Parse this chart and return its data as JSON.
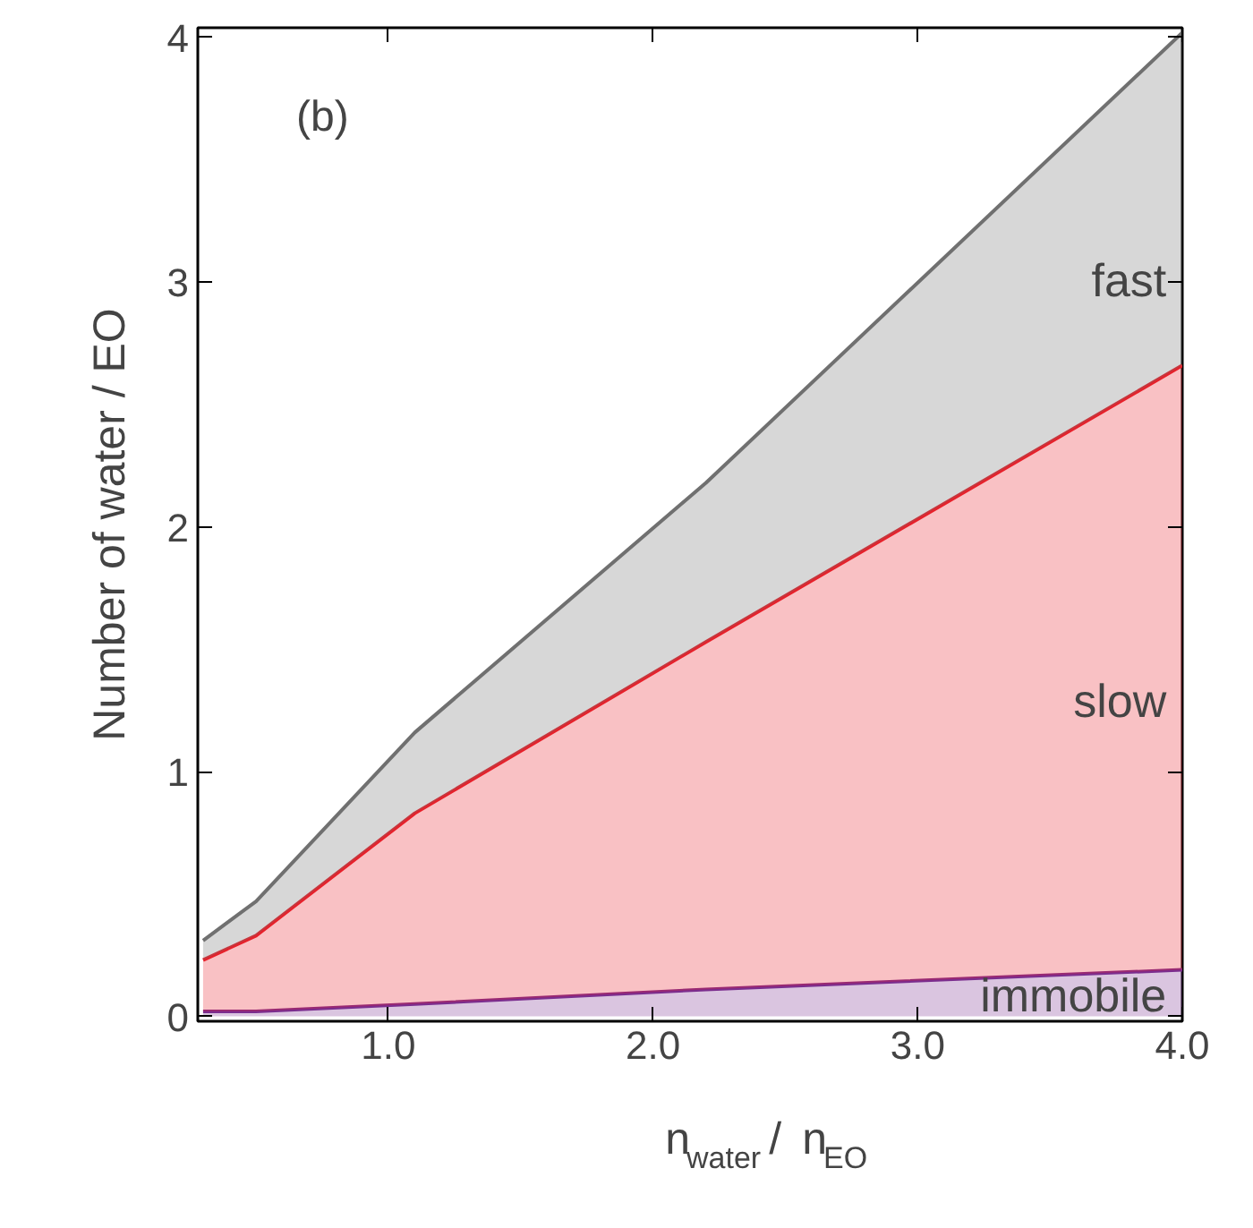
{
  "chart_data": {
    "type": "area",
    "stacked": true,
    "xlabel": "n$_{water}$ / n$_{EO}$",
    "ylabel": "Number of water / EO",
    "x": [
      0.3,
      0.5,
      1.1,
      2.2,
      4.0
    ],
    "series": [
      {
        "name": "immobile",
        "color": "#7b2d8e",
        "values": [
          0.02,
          0.02,
          0.05,
          0.11,
          0.19
        ]
      },
      {
        "name": "slow",
        "color": "#e8202a",
        "values": [
          0.21,
          0.31,
          0.78,
          1.42,
          2.47
        ]
      },
      {
        "name": "fast",
        "color": "#707070",
        "values": [
          0.08,
          0.14,
          0.33,
          0.65,
          1.36
        ]
      }
    ],
    "xlim": [
      0.28,
      4.0
    ],
    "ylim": [
      -0.02,
      4.04
    ],
    "xticks": [
      {
        "value": 1,
        "label": "1.0"
      },
      {
        "value": 2,
        "label": "2.0"
      },
      {
        "value": 3,
        "label": "3.0"
      },
      {
        "value": 4,
        "label": "4.0"
      }
    ],
    "yticks": [
      0,
      1,
      2,
      3,
      4
    ],
    "annotations": [
      "(b)"
    ],
    "grid": false
  }
}
